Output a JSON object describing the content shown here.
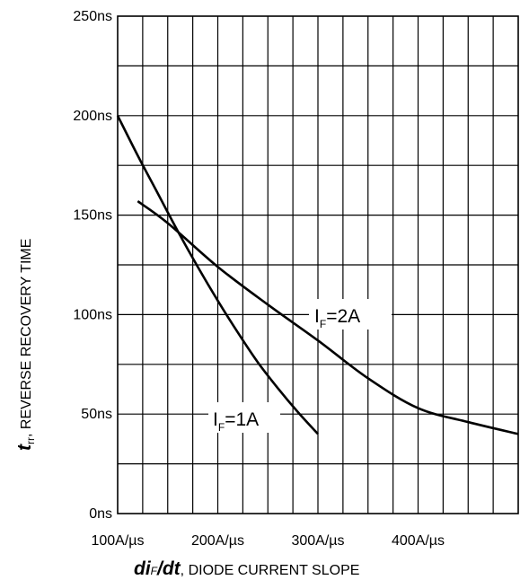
{
  "chart_data": {
    "type": "line",
    "x_tick_labels": [
      "100A/µs",
      "200A/µs",
      "300A/µs",
      "400A/µs"
    ],
    "y_tick_labels": [
      "0ns",
      "50ns",
      "100ns",
      "150ns",
      "200ns",
      "250ns"
    ],
    "xlabel_italic": "di",
    "xlabel_sub": "F",
    "xlabel_slash": "/dt",
    "xlabel_rest": ", DIODE CURRENT SLOPE",
    "ylabel_italic": "t",
    "ylabel_sub": "rr",
    "ylabel_rest": ", REVERSE RECOVERY TIME",
    "xlim": [
      100,
      500
    ],
    "ylim": [
      0,
      250
    ],
    "x_grid_step": 25,
    "y_grid_step": 25,
    "grid": true,
    "series": [
      {
        "name": "IF=1A",
        "label_main": "I",
        "label_sub": "F",
        "label_value": "=1A",
        "x": [
          100,
          120,
          140,
          160,
          180,
          200,
          220,
          240,
          260,
          280,
          300
        ],
        "y": [
          200,
          180,
          161,
          142,
          124,
          107,
          91,
          76,
          63,
          51,
          40
        ]
      },
      {
        "name": "IF=2A",
        "label_main": "I",
        "label_sub": "F",
        "label_value": "=2A",
        "x": [
          120,
          150,
          200,
          250,
          300,
          350,
          400,
          450,
          500
        ],
        "y": [
          157,
          146,
          124,
          105,
          87,
          68,
          53,
          46,
          40
        ]
      }
    ]
  }
}
